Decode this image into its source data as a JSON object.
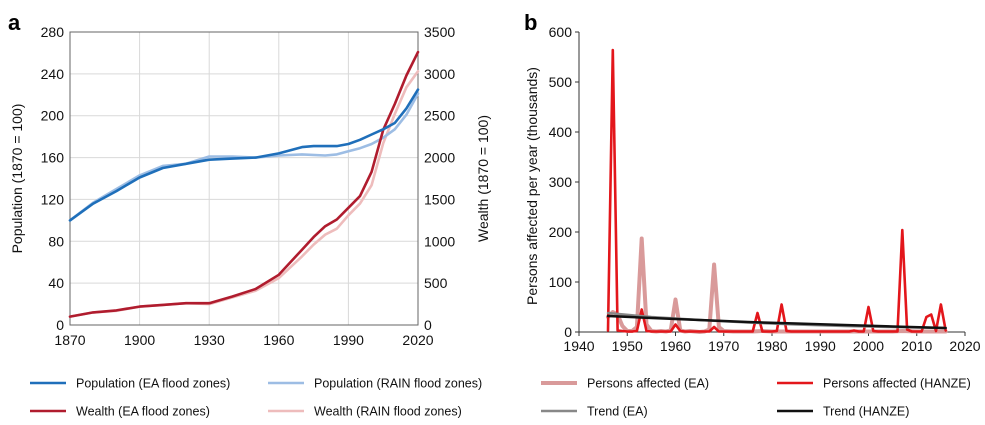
{
  "figure": {
    "panel_a_label": "a",
    "panel_b_label": "b"
  },
  "chart_data": [
    {
      "type": "line",
      "panel": "a",
      "ylabel": "Population (1870 = 100)",
      "y2label": "Wealth (1870 = 100)",
      "xlim": [
        1870,
        2020
      ],
      "ylim": [
        0,
        280
      ],
      "y2lim": [
        0,
        3500
      ],
      "xticks": [
        "1870",
        "1900",
        "1930",
        "1960",
        "1990",
        "2020"
      ],
      "yticks": [
        "0",
        "40",
        "80",
        "120",
        "160",
        "200",
        "240",
        "280"
      ],
      "y2ticks": [
        "0",
        "500",
        "1000",
        "1500",
        "2000",
        "2500",
        "3000",
        "3500"
      ],
      "grid": true,
      "legend": "bottom",
      "series": [
        {
          "name": "Population (EA flood zones)",
          "axis": "left",
          "color": "#1f6fba",
          "x": [
            1870,
            1880,
            1890,
            1900,
            1910,
            1920,
            1930,
            1940,
            1950,
            1960,
            1970,
            1975,
            1980,
            1985,
            1990,
            1995,
            2000,
            2005,
            2010,
            2015,
            2020
          ],
          "y": [
            100,
            116,
            128,
            141,
            150,
            154,
            158,
            159,
            160,
            164,
            170,
            171,
            171,
            171,
            173,
            177,
            182,
            187,
            193,
            207,
            225
          ]
        },
        {
          "name": "Population (RAIN flood zones)",
          "axis": "left",
          "color": "#9dbde4",
          "x": [
            1870,
            1880,
            1890,
            1900,
            1910,
            1920,
            1930,
            1940,
            1950,
            1960,
            1970,
            1980,
            1985,
            1990,
            1995,
            2000,
            2005,
            2010,
            2015,
            2020
          ],
          "y": [
            100,
            117,
            130,
            143,
            152,
            154,
            161,
            161,
            160,
            162,
            163,
            162,
            163,
            166,
            169,
            173,
            179,
            187,
            201,
            221
          ]
        },
        {
          "name": "Wealth (EA flood zones)",
          "axis": "right",
          "color": "#b01c2e",
          "x": [
            1870,
            1880,
            1890,
            1900,
            1910,
            1920,
            1930,
            1940,
            1950,
            1960,
            1970,
            1975,
            1980,
            1985,
            1990,
            1995,
            2000,
            2005,
            2010,
            2015,
            2020
          ],
          "y": [
            100,
            150,
            175,
            220,
            240,
            260,
            260,
            340,
            430,
            600,
            900,
            1050,
            1180,
            1260,
            1400,
            1540,
            1830,
            2330,
            2640,
            2980,
            3260
          ]
        },
        {
          "name": "Wealth (RAIN flood zones)",
          "axis": "right",
          "color": "#eebcbc",
          "x": [
            1870,
            1880,
            1890,
            1900,
            1910,
            1920,
            1930,
            1940,
            1950,
            1960,
            1970,
            1975,
            1980,
            1985,
            1990,
            1995,
            2000,
            2005,
            2010,
            2015,
            2020
          ],
          "y": [
            100,
            150,
            170,
            220,
            240,
            260,
            250,
            330,
            410,
            560,
            820,
            960,
            1080,
            1150,
            1310,
            1450,
            1670,
            2170,
            2520,
            2840,
            3030
          ]
        }
      ]
    },
    {
      "type": "line",
      "panel": "b",
      "ylabel": "Persons affected per year (thousands)",
      "xlim": [
        1940,
        2020
      ],
      "ylim": [
        0,
        600
      ],
      "xticks": [
        "1940",
        "1950",
        "1960",
        "1970",
        "1980",
        "1990",
        "2000",
        "2010",
        "2020"
      ],
      "yticks": [
        "0",
        "100",
        "200",
        "300",
        "400",
        "500",
        "600"
      ],
      "grid": false,
      "legend": "bottom",
      "series": [
        {
          "name": "Persons affected (EA)",
          "color": "#d99a9a",
          "width": 4,
          "x": [
            1946,
            1947,
            1948,
            1949,
            1950,
            1951,
            1952,
            1953,
            1954,
            1955,
            1956,
            1957,
            1958,
            1959,
            1960,
            1961,
            1962,
            1963,
            1964,
            1965,
            1966,
            1967,
            1968,
            1969,
            1970,
            1972,
            1974,
            1976,
            1978,
            1980,
            1982,
            1985,
            1990,
            1995,
            2000,
            2005,
            2007,
            2010,
            2013,
            2016
          ],
          "y": [
            30,
            40,
            35,
            12,
            2,
            2,
            10,
            187,
            15,
            2,
            1,
            2,
            1,
            3,
            65,
            3,
            1,
            2,
            1,
            0,
            1,
            5,
            135,
            10,
            2,
            1,
            1,
            1,
            2,
            1,
            1,
            1,
            1,
            1,
            1,
            1,
            2,
            1,
            1,
            1
          ]
        },
        {
          "name": "Persons affected (HANZE)",
          "color": "#e3161b",
          "width": 2.6,
          "x": [
            1946,
            1947,
            1948,
            1949,
            1950,
            1951,
            1952,
            1953,
            1954,
            1955,
            1956,
            1957,
            1958,
            1959,
            1960,
            1961,
            1962,
            1963,
            1964,
            1965,
            1966,
            1967,
            1968,
            1969,
            1970,
            1971,
            1972,
            1973,
            1974,
            1975,
            1976,
            1977,
            1978,
            1979,
            1980,
            1981,
            1982,
            1983,
            1984,
            1985,
            1986,
            1988,
            1990,
            1992,
            1994,
            1996,
            1997,
            1998,
            1999,
            2000,
            2001,
            2002,
            2003,
            2004,
            2005,
            2006,
            2007,
            2008,
            2009,
            2010,
            2011,
            2012,
            2013,
            2014,
            2015,
            2016
          ],
          "y": [
            3,
            564,
            3,
            2,
            1,
            1,
            2,
            45,
            2,
            1,
            1,
            1,
            1,
            1,
            15,
            2,
            1,
            1,
            1,
            1,
            1,
            1,
            10,
            1,
            1,
            1,
            1,
            1,
            1,
            1,
            1,
            38,
            1,
            1,
            1,
            2,
            55,
            2,
            1,
            1,
            1,
            1,
            1,
            1,
            1,
            1,
            3,
            1,
            1,
            50,
            2,
            1,
            1,
            1,
            1,
            1,
            204,
            5,
            1,
            1,
            1,
            30,
            35,
            2,
            55,
            3
          ]
        },
        {
          "name": "Trend (EA)",
          "color": "#888888",
          "width": 2.5,
          "x": [
            1946,
            1955,
            1965,
            1975,
            1985,
            1995,
            2005,
            2016
          ],
          "y": [
            38,
            30,
            24,
            19,
            15,
            12,
            10,
            8
          ]
        },
        {
          "name": "Trend (HANZE)",
          "color": "#111111",
          "width": 2.5,
          "x": [
            1946,
            1955,
            1965,
            1975,
            1985,
            1995,
            2005,
            2016
          ],
          "y": [
            32,
            28,
            24,
            20,
            17,
            14,
            11,
            8
          ]
        }
      ]
    }
  ]
}
